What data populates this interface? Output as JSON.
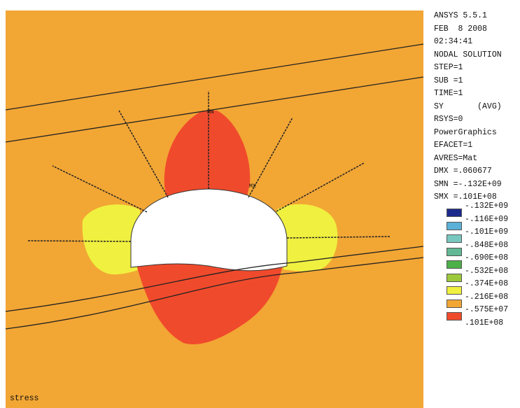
{
  "header": {
    "lines": [
      "ANSYS 5.5.1",
      "FEB  8 2008",
      "02:34:41",
      "NODAL SOLUTION",
      "STEP=1",
      "SUB =1",
      "TIME=1",
      "SY       (AVG)",
      "RSYS=0",
      "PowerGraphics",
      "EFACET=1",
      "AVRES=Mat",
      "DMX =.060677",
      "SMN =-.132E+09",
      "SMX =.101E+08"
    ]
  },
  "legend": {
    "labels": [
      "-.132E+09",
      "-.116E+09",
      "-.101E+09",
      "-.848E+08",
      "-.690E+08",
      "-.532E+08",
      "-.374E+08",
      "-.216E+08",
      "-.575E+07",
      ".101E+08"
    ],
    "colors": [
      "#1c2a8c",
      "#5ab0d6",
      "#78c8c0",
      "#62b894",
      "#4cb048",
      "#9cc83c",
      "#f0f040",
      "#f2a634",
      "#f04a2c"
    ]
  },
  "plot": {
    "min_marker": "MN",
    "max_marker": "MX",
    "label": "stress"
  }
}
